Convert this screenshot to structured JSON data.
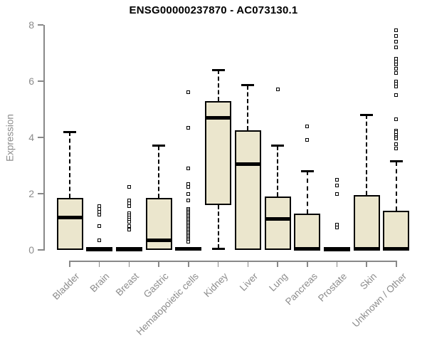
{
  "title": "ENSG00000237870 - AC073130.1",
  "chart_data": {
    "type": "boxplot",
    "title": "ENSG00000237870 - AC073130.1",
    "ylabel": "Expression",
    "ylim": [
      0,
      8
    ],
    "yticks": [
      0,
      2,
      4,
      6,
      8
    ],
    "grid": false,
    "legend": "none",
    "colors": {
      "box_fill": "#ebe6cd",
      "box_border": "#000000",
      "median": "#000000",
      "axis": "#888888",
      "labels": "#8c8c8c",
      "title": "#000000"
    },
    "categories": [
      "Bladder",
      "Brain",
      "Breast",
      "Gastric",
      "Hematopoietic cells",
      "Kidney",
      "Liver",
      "Lung",
      "Pancreas",
      "Prostate",
      "Skin",
      "Unknown / Other"
    ],
    "series": [
      {
        "name": "Bladder",
        "low": 0,
        "q1": 0,
        "median": 1.15,
        "q3": 1.85,
        "high": 4.2,
        "outliers": []
      },
      {
        "name": "Brain",
        "low": 0,
        "q1": 0,
        "median": 0.03,
        "q3": 0.08,
        "high": 0.08,
        "outliers": [
          1.55,
          1.45,
          1.35,
          1.25,
          0.86,
          0.35
        ]
      },
      {
        "name": "Breast",
        "low": 0,
        "q1": 0,
        "median": 0.03,
        "q3": 0.08,
        "high": 0.08,
        "outliers": [
          2.25,
          1.75,
          1.65,
          1.55,
          1.3,
          1.22,
          1.15,
          1.08,
          1.0,
          0.84,
          0.72
        ]
      },
      {
        "name": "Gastric",
        "low": 0,
        "q1": 0,
        "median": 0.35,
        "q3": 1.85,
        "high": 3.7,
        "outliers": []
      },
      {
        "name": "Hematopoietic cells",
        "low": 0,
        "q1": 0,
        "median": 0.03,
        "q3": 0.1,
        "high": 0.1,
        "outliers": [
          5.6,
          4.35,
          2.9,
          2.35,
          2.25,
          2.0,
          1.75,
          1.45,
          1.4,
          1.35,
          1.3,
          1.25,
          1.2,
          1.15,
          1.1,
          1.05,
          1.0,
          0.95,
          0.9,
          0.85,
          0.8,
          0.75,
          0.7,
          0.65,
          0.6,
          0.55,
          0.5,
          0.45,
          0.4,
          0.35,
          0.3
        ]
      },
      {
        "name": "Kidney",
        "low": 0.05,
        "q1": 1.6,
        "median": 4.7,
        "q3": 5.3,
        "high": 6.4,
        "outliers": []
      },
      {
        "name": "Liver",
        "low": 0,
        "q1": 0,
        "median": 3.05,
        "q3": 4.25,
        "high": 5.85,
        "outliers": []
      },
      {
        "name": "Lung",
        "low": 0,
        "q1": 0,
        "median": 1.1,
        "q3": 1.9,
        "high": 3.7,
        "outliers": [
          5.7
        ]
      },
      {
        "name": "Pancreas",
        "low": 0,
        "q1": 0,
        "median": 0.05,
        "q3": 1.3,
        "high": 2.8,
        "outliers": [
          4.4,
          3.9
        ]
      },
      {
        "name": "Prostate",
        "low": 0,
        "q1": 0,
        "median": 0.03,
        "q3": 0.08,
        "high": 0.08,
        "outliers": [
          2.5,
          2.3,
          2.0,
          0.9,
          0.8
        ]
      },
      {
        "name": "Skin",
        "low": 0,
        "q1": 0,
        "median": 0.05,
        "q3": 1.95,
        "high": 4.8,
        "outliers": []
      },
      {
        "name": "Unknown / Other",
        "low": 0,
        "q1": 0,
        "median": 0.05,
        "q3": 1.4,
        "high": 3.15,
        "outliers": [
          7.8,
          7.6,
          7.4,
          7.2,
          6.8,
          6.7,
          6.6,
          6.45,
          6.3,
          6.0,
          5.9,
          5.8,
          5.5,
          4.65,
          4.25,
          4.18,
          4.1,
          4.02,
          3.95,
          3.77,
          3.6
        ]
      }
    ]
  }
}
